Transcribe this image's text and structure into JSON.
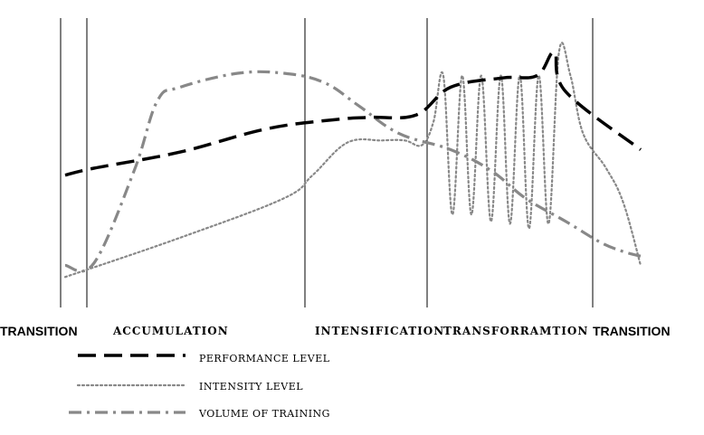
{
  "chart_data": {
    "type": "line",
    "phases": [
      {
        "name": "TRANSITION",
        "style": "transition"
      },
      {
        "name": "ACCUMULATION",
        "style": "phase"
      },
      {
        "name": "INTENSIFICATION",
        "style": "phase"
      },
      {
        "name": "TRANSFORRAMTION",
        "style": "phase"
      },
      {
        "name": "TRANSITION",
        "style": "transition"
      }
    ],
    "series": [
      {
        "name": "PERFORMANCE LEVEL",
        "key": "performance",
        "color": "#000000",
        "dash": "long-dash",
        "points": [
          [
            0,
            0.47
          ],
          [
            0.05,
            0.5
          ],
          [
            0.2,
            0.57
          ],
          [
            0.35,
            0.67
          ],
          [
            0.47,
            0.71
          ],
          [
            0.53,
            0.72
          ],
          [
            0.61,
            0.73
          ],
          [
            0.67,
            0.85
          ],
          [
            0.76,
            0.89
          ],
          [
            0.82,
            0.9
          ],
          [
            0.85,
            1.0
          ],
          [
            0.87,
            0.83
          ],
          [
            1.0,
            0.58
          ]
        ]
      },
      {
        "name": "INTENSITY LEVEL",
        "key": "intensity",
        "color": "#888888",
        "dash": "dotted",
        "points": [
          [
            0,
            0.03
          ],
          [
            0.2,
            0.2
          ],
          [
            0.38,
            0.37
          ],
          [
            0.43,
            0.47
          ],
          [
            0.49,
            0.61
          ],
          [
            0.55,
            0.62
          ],
          [
            0.59,
            0.62
          ],
          [
            0.62,
            0.6
          ],
          [
            0.64,
            0.7
          ],
          [
            0.657,
            0.9
          ],
          [
            0.673,
            0.3
          ],
          [
            0.69,
            0.9
          ],
          [
            0.706,
            0.3
          ],
          [
            0.723,
            0.9
          ],
          [
            0.74,
            0.27
          ],
          [
            0.757,
            0.9
          ],
          [
            0.773,
            0.26
          ],
          [
            0.79,
            0.9
          ],
          [
            0.806,
            0.24
          ],
          [
            0.823,
            0.9
          ],
          [
            0.84,
            0.26
          ],
          [
            0.858,
            1.0
          ],
          [
            0.878,
            0.9
          ],
          [
            0.9,
            0.65
          ],
          [
            0.94,
            0.5
          ],
          [
            0.97,
            0.35
          ],
          [
            1.0,
            0.08
          ]
        ]
      },
      {
        "name": "VOLUME OF TRAINING",
        "key": "volume",
        "color": "#888888",
        "dash": "dash-dot",
        "points": [
          [
            0,
            0.08
          ],
          [
            0.05,
            0.09
          ],
          [
            0.12,
            0.49
          ],
          [
            0.16,
            0.79
          ],
          [
            0.2,
            0.85
          ],
          [
            0.3,
            0.91
          ],
          [
            0.38,
            0.91
          ],
          [
            0.45,
            0.87
          ],
          [
            0.51,
            0.77
          ],
          [
            0.58,
            0.65
          ],
          [
            0.67,
            0.58
          ],
          [
            0.74,
            0.49
          ],
          [
            0.8,
            0.37
          ],
          [
            0.87,
            0.27
          ],
          [
            0.93,
            0.18
          ],
          [
            0.97,
            0.14
          ],
          [
            1.0,
            0.12
          ]
        ]
      }
    ],
    "legend_position": "bottom-left",
    "grid": false
  }
}
